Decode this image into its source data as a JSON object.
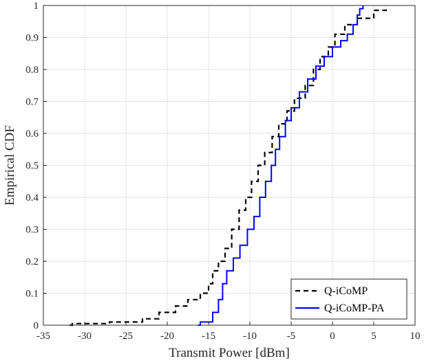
{
  "chart_data": {
    "type": "line",
    "xlabel": "Transmit Power [dBm]",
    "ylabel": "Empirical CDF",
    "xlim": [
      -35,
      10
    ],
    "ylim": [
      0,
      1
    ],
    "xticks": [
      -35,
      -30,
      -25,
      -20,
      -15,
      -10,
      -5,
      0,
      5,
      10
    ],
    "yticks": [
      0,
      0.1,
      0.2,
      0.3,
      0.4,
      0.5,
      0.6,
      0.7,
      0.8,
      0.9,
      1
    ],
    "grid": true,
    "legend_position": "bottom-right",
    "series": [
      {
        "name": "Q-iCoMP",
        "color": "#000000",
        "dash": "dashed",
        "points": [
          [
            -31.8,
            0.0
          ],
          [
            -31.5,
            0.005
          ],
          [
            -27,
            0.01
          ],
          [
            -23,
            0.02
          ],
          [
            -21,
            0.04
          ],
          [
            -19,
            0.06
          ],
          [
            -17.5,
            0.08
          ],
          [
            -16,
            0.1
          ],
          [
            -15,
            0.13
          ],
          [
            -14.5,
            0.17
          ],
          [
            -13.8,
            0.2
          ],
          [
            -13,
            0.24
          ],
          [
            -12.2,
            0.3
          ],
          [
            -11.3,
            0.36
          ],
          [
            -10.5,
            0.4
          ],
          [
            -9.8,
            0.45
          ],
          [
            -9,
            0.5
          ],
          [
            -8.2,
            0.54
          ],
          [
            -7.3,
            0.59
          ],
          [
            -6.5,
            0.63
          ],
          [
            -5.5,
            0.67
          ],
          [
            -4.6,
            0.71
          ],
          [
            -3.3,
            0.75
          ],
          [
            -2.3,
            0.8
          ],
          [
            -1.5,
            0.84
          ],
          [
            -0.5,
            0.87
          ],
          [
            0.3,
            0.91
          ],
          [
            1.5,
            0.94
          ],
          [
            3.0,
            0.96
          ],
          [
            5.0,
            0.985
          ],
          [
            6.5,
            1.0
          ]
        ]
      },
      {
        "name": "Q-iCoMP-PA",
        "color": "#0000ff",
        "dash": "solid",
        "points": [
          [
            -16.3,
            0.0
          ],
          [
            -16,
            0.01
          ],
          [
            -14.5,
            0.04
          ],
          [
            -13.8,
            0.08
          ],
          [
            -13.3,
            0.13
          ],
          [
            -12.8,
            0.17
          ],
          [
            -12,
            0.21
          ],
          [
            -11.2,
            0.25
          ],
          [
            -10.3,
            0.3
          ],
          [
            -9.5,
            0.34
          ],
          [
            -8.8,
            0.4
          ],
          [
            -8.1,
            0.45
          ],
          [
            -7.4,
            0.5
          ],
          [
            -6.9,
            0.55
          ],
          [
            -6.4,
            0.59
          ],
          [
            -5.7,
            0.64
          ],
          [
            -5.0,
            0.68
          ],
          [
            -4.0,
            0.73
          ],
          [
            -3.0,
            0.77
          ],
          [
            -2.0,
            0.81
          ],
          [
            -1.0,
            0.84
          ],
          [
            0.0,
            0.87
          ],
          [
            1.0,
            0.89
          ],
          [
            1.8,
            0.91
          ],
          [
            2.5,
            0.94
          ],
          [
            3.0,
            0.97
          ],
          [
            3.3,
            0.99
          ],
          [
            3.7,
            1.0
          ]
        ]
      }
    ]
  }
}
